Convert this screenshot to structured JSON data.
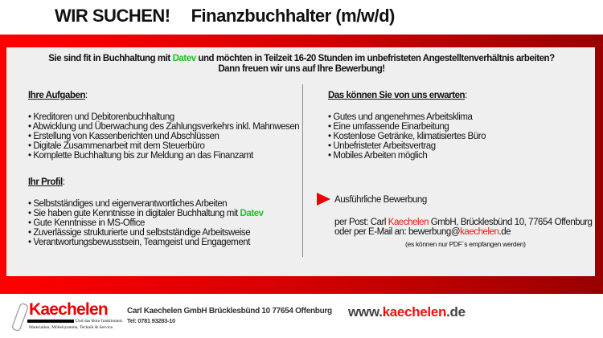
{
  "header": {
    "lead": "WIR SUCHEN!",
    "position": "Finanzbuchhalter (m/w/d)"
  },
  "intro": {
    "line1_a": "Sie sind fit in Buchhaltung mit ",
    "line1_datev": "Datev",
    "line1_b": " und möchten in Teilzeit 16-20 Stunden im unbefristeten Angestelltenverhältnis arbeiten?",
    "line2": "Dann freuen wir uns auf Ihre Bewerbung!"
  },
  "tasks": {
    "heading": "Ihre Aufgaben",
    "items": [
      "• Kreditoren und Debitorenbuchhaltung",
      "• Abwicklung und Überwachung des Zahlungsverkehrs inkl. Mahnwesen",
      "• Erstellung von Kassenberichten und Abschlüssen",
      "• Digitale Zusammenarbeit mit dem Steuerbüro",
      "• Komplette Buchhaltung bis zur Meldung an das Finanzamt"
    ]
  },
  "profile": {
    "heading": "Ihr Profil",
    "items": [
      "• Selbstständiges und eigenverantwortliches Arbeiten",
      "• Sie haben gute Kenntnisse in digitaler Buchhaltung mit ",
      "• Gute Kenntnisse in MS-Office",
      "• Zuverlässige strukturierte und selbstständige Arbeitsweise",
      "• Verantwortungsbewusstsein, Teamgeist und Engagement"
    ],
    "datev": "Datev"
  },
  "offer": {
    "heading": "Das können Sie von uns erwarten",
    "items": [
      "• Gutes und angenehmes Arbeitsklima",
      "• Eine umfassende Einarbeitung",
      "• Kostenlose Getränke, klimatisiertes Büro",
      "• Unbefristeter Arbeitsvertrag",
      "• Mobiles Arbeiten möglich"
    ]
  },
  "apply": {
    "title": "Ausführliche Bewerbung",
    "post_a": "per Post: Carl ",
    "post_brand": "Kaechelen",
    "post_b": " GmbH, Brücklesbünd 10, 77654 Offenburg",
    "mail_a": "oder per E-Mail an: bewerbung@",
    "mail_brand": "kaechelen",
    "mail_b": ".de",
    "note": "(es können nur PDF´s empfangen werden)"
  },
  "footer": {
    "logo": "Kaechelen",
    "slogan1": "Und das Büro funktioniert.",
    "slogan2": "Materialien, Möbelsysteme, Technik & Service.",
    "address": "Carl Kaechelen GmbH Brücklesbünd 10 77654 Offenburg",
    "tel": "Tel: 0781 93283-10",
    "web_a": "www.",
    "web_brand": "kaechelen",
    "web_b": ".de"
  },
  "colors": {
    "red": "#ff0000",
    "dark_red": "#990000",
    "green": "#1ec31e",
    "panel": "#efefef"
  }
}
